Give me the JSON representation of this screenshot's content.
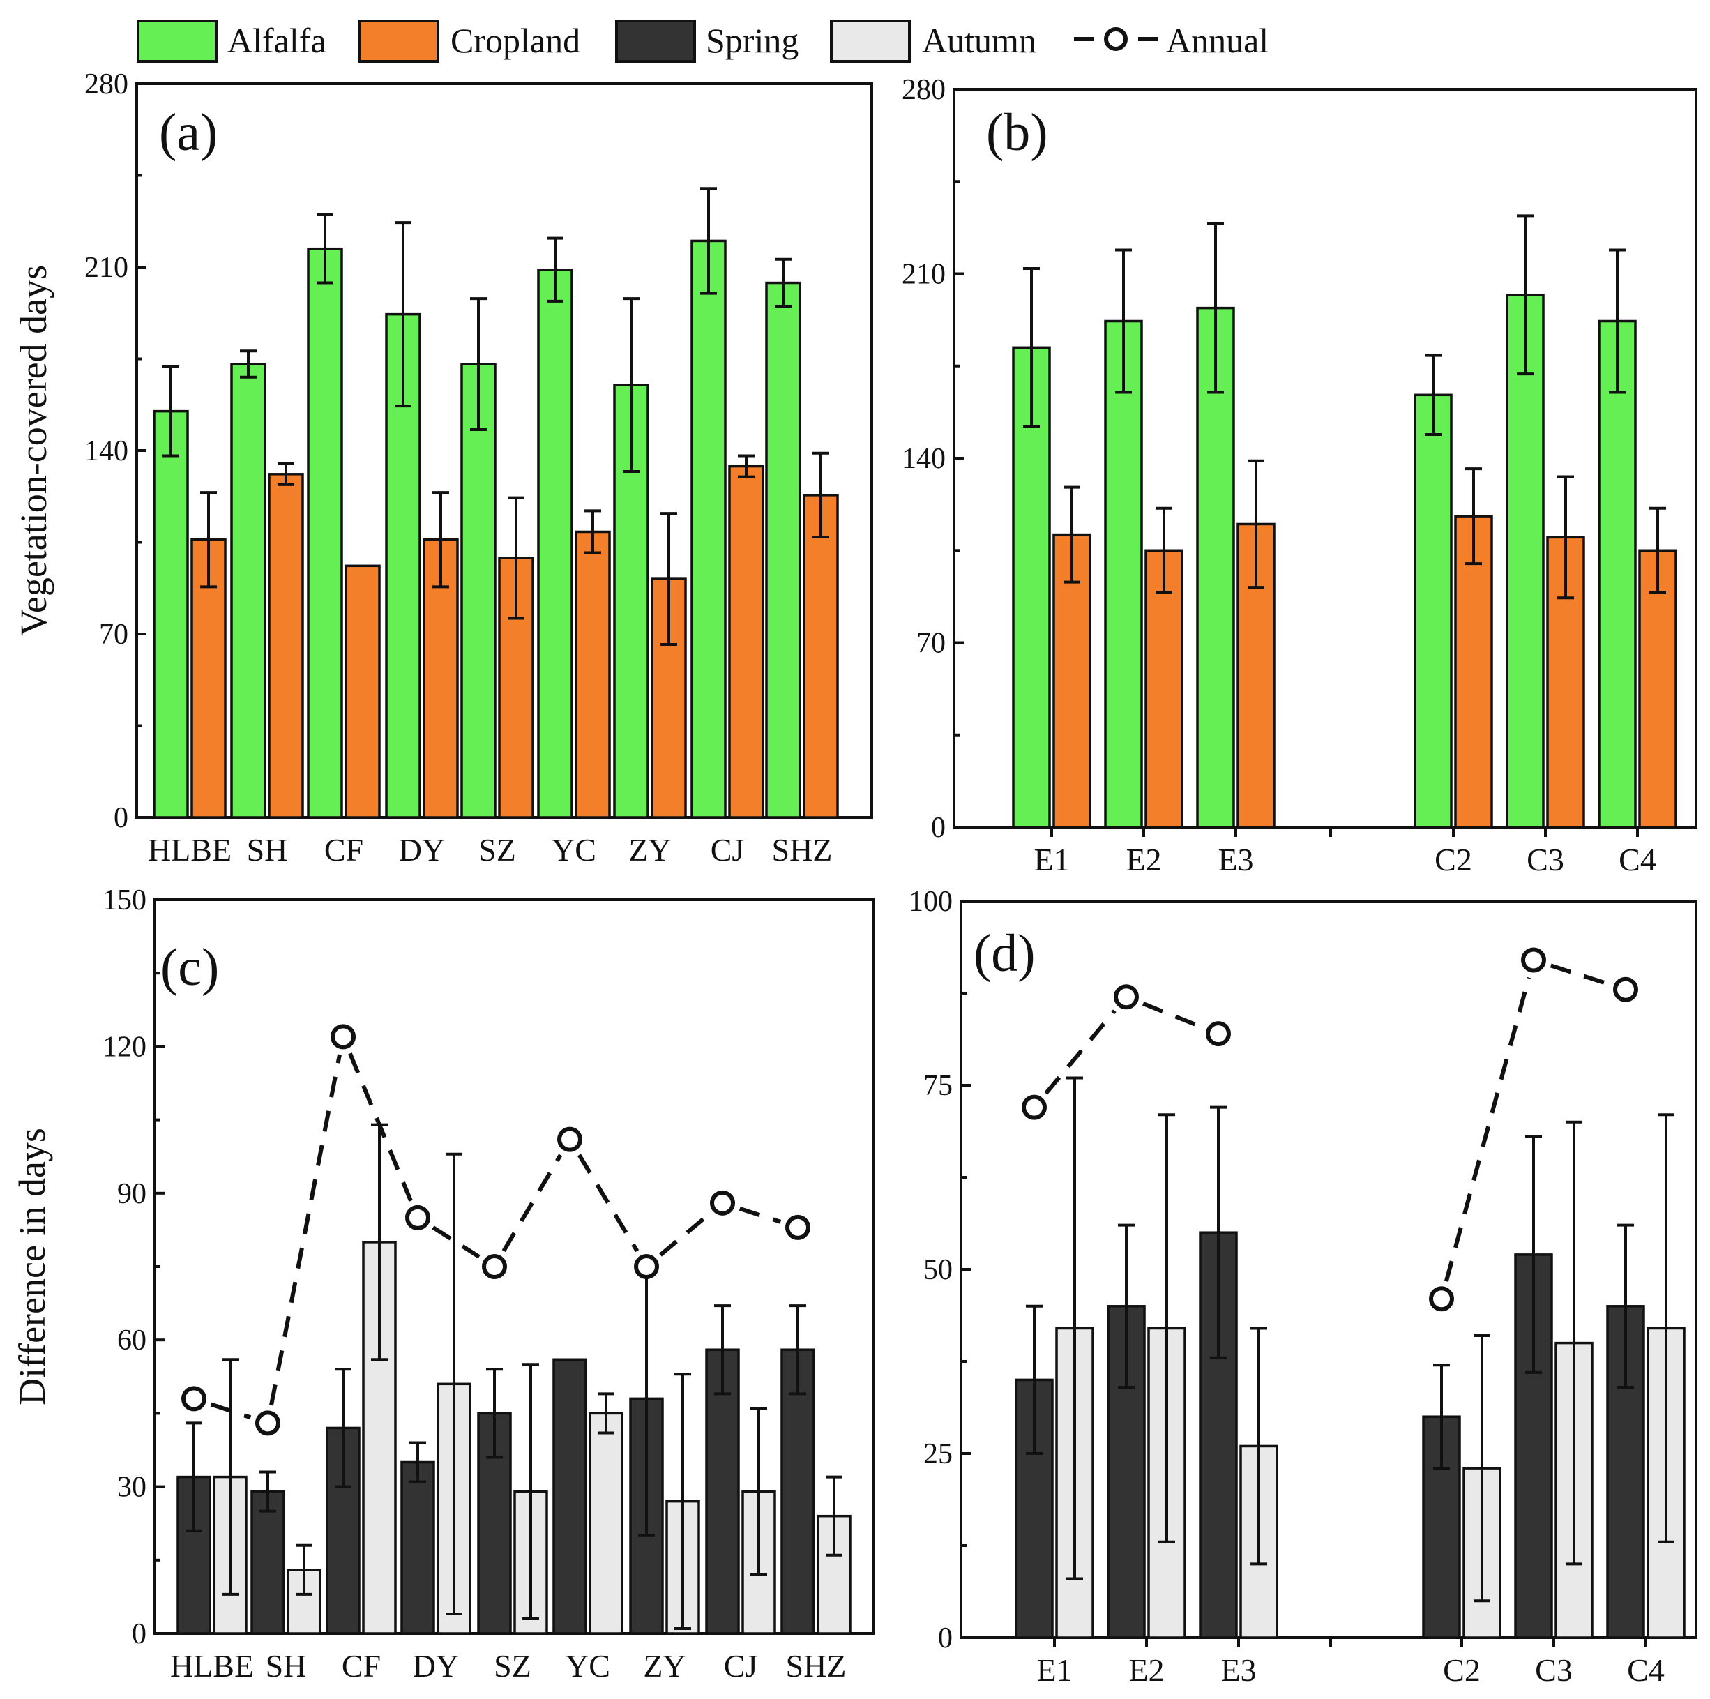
{
  "legend": {
    "items": [
      {
        "label": "Alfalfa",
        "kind": "bar",
        "fill": "#66ee55"
      },
      {
        "label": "Cropland",
        "kind": "bar",
        "fill": "#f37f2a"
      },
      {
        "label": "Spring",
        "kind": "bar",
        "fill": "#333333"
      },
      {
        "label": "Autumn",
        "kind": "bar",
        "fill": "#e9e9e9"
      },
      {
        "label": "Annual",
        "kind": "line-marker"
      }
    ]
  },
  "chart_data": [
    {
      "id": "a",
      "type": "bar",
      "panel_label": "(a)",
      "ylabel": "Vegetation-covered days",
      "xlabel": "",
      "ylim": [
        0,
        280
      ],
      "yticks": [
        0,
        70,
        140,
        210,
        280
      ],
      "categories": [
        "HLBE",
        "SH",
        "CF",
        "DY",
        "SZ",
        "YC",
        "ZY",
        "CJ",
        "SHZ"
      ],
      "series": [
        {
          "name": "Alfalfa",
          "color": "#66ee55",
          "values": [
            155,
            173,
            217,
            192,
            173,
            209,
            165,
            220,
            204
          ],
          "err": [
            17,
            5,
            13,
            35,
            25,
            12,
            33,
            20,
            9
          ]
        },
        {
          "name": "Cropland",
          "color": "#f37f2a",
          "values": [
            106,
            131,
            96,
            106,
            99,
            109,
            91,
            134,
            123
          ],
          "err": [
            18,
            4,
            0,
            18,
            23,
            8,
            25,
            4,
            16
          ]
        }
      ]
    },
    {
      "id": "b",
      "type": "bar",
      "panel_label": "(b)",
      "ylabel": "",
      "xlabel": "",
      "ylim": [
        0,
        280
      ],
      "yticks": [
        0,
        70,
        140,
        210,
        280
      ],
      "categories": [
        "E1",
        "E2",
        "E3",
        "C2",
        "C3",
        "C4"
      ],
      "series": [
        {
          "name": "Alfalfa",
          "color": "#66ee55",
          "values": [
            182,
            192,
            197,
            164,
            202,
            192
          ],
          "err": [
            30,
            27,
            32,
            15,
            30,
            27
          ]
        },
        {
          "name": "Cropland",
          "color": "#f37f2a",
          "values": [
            111,
            105,
            115,
            118,
            110,
            105
          ],
          "err": [
            18,
            16,
            24,
            18,
            23,
            16
          ]
        }
      ]
    },
    {
      "id": "c",
      "type": "bar",
      "panel_label": "(c)",
      "ylabel": "Difference in days",
      "xlabel": "",
      "ylim": [
        0,
        150
      ],
      "yticks": [
        0,
        30,
        60,
        90,
        120,
        150
      ],
      "categories": [
        "HLBE",
        "SH",
        "CF",
        "DY",
        "SZ",
        "YC",
        "ZY",
        "CJ",
        "SHZ"
      ],
      "series": [
        {
          "name": "Spring",
          "color": "#333333",
          "values": [
            32,
            29,
            42,
            35,
            45,
            56,
            48,
            58,
            58
          ],
          "err": [
            11,
            4,
            12,
            4,
            9,
            0,
            28,
            9,
            9
          ]
        },
        {
          "name": "Autumn",
          "color": "#e9e9e9",
          "values": [
            32,
            13,
            80,
            51,
            29,
            45,
            27,
            29,
            24
          ],
          "err": [
            24,
            5,
            24,
            47,
            26,
            4,
            26,
            17,
            8
          ]
        },
        {
          "name": "Annual",
          "kind": "line",
          "values": [
            48,
            43,
            122,
            85,
            75,
            101,
            75,
            88,
            83
          ]
        }
      ]
    },
    {
      "id": "d",
      "type": "bar",
      "panel_label": "(d)",
      "ylabel": "",
      "xlabel": "",
      "ylim": [
        0,
        100
      ],
      "yticks": [
        0,
        25,
        50,
        75,
        100
      ],
      "categories": [
        "E1",
        "E2",
        "E3",
        "C2",
        "C3",
        "C4"
      ],
      "series": [
        {
          "name": "Spring",
          "color": "#333333",
          "values": [
            35,
            45,
            55,
            30,
            52,
            45
          ],
          "err": [
            10,
            11,
            17,
            7,
            16,
            11
          ]
        },
        {
          "name": "Autumn",
          "color": "#e9e9e9",
          "values": [
            42,
            42,
            26,
            23,
            40,
            42
          ],
          "err": [
            34,
            29,
            16,
            18,
            30,
            29
          ]
        },
        {
          "name": "Annual",
          "kind": "line",
          "values": [
            72,
            87,
            82,
            46,
            92,
            88
          ]
        }
      ]
    }
  ]
}
